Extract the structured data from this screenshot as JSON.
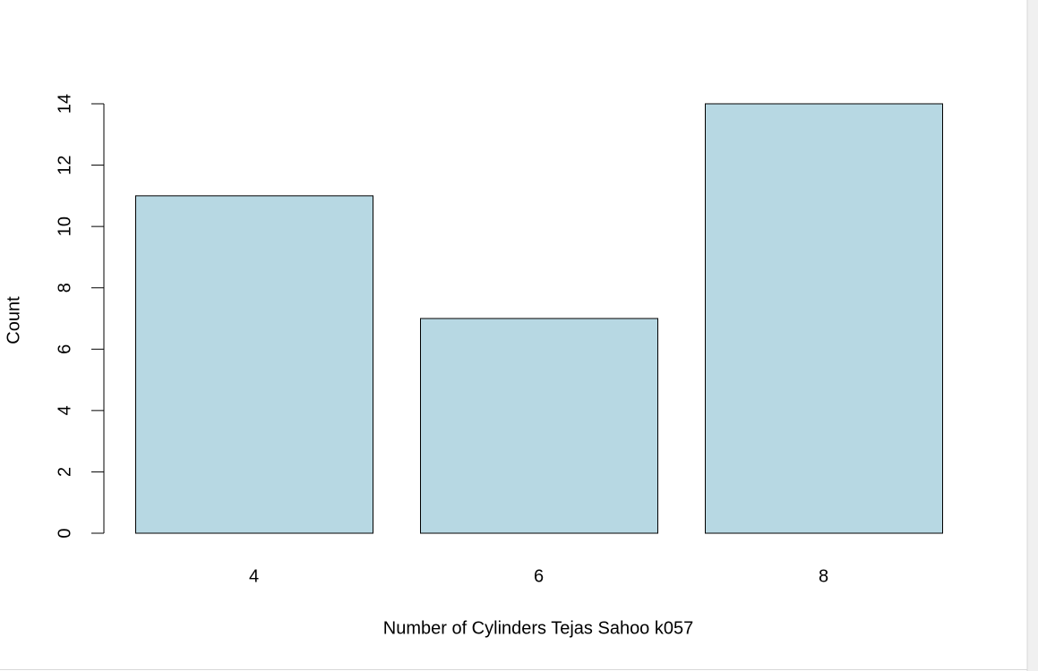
{
  "chart_data": {
    "type": "bar",
    "x_label": "Number of Cylinders Tejas Sahoo k057",
    "y_label": "Count",
    "categories": [
      "4",
      "6",
      "8"
    ],
    "values": [
      11,
      7,
      14
    ],
    "color": "#b7d8e3",
    "ylim": [
      0,
      14
    ],
    "yticks": [
      0,
      2,
      4,
      6,
      8,
      10,
      12,
      14
    ]
  }
}
